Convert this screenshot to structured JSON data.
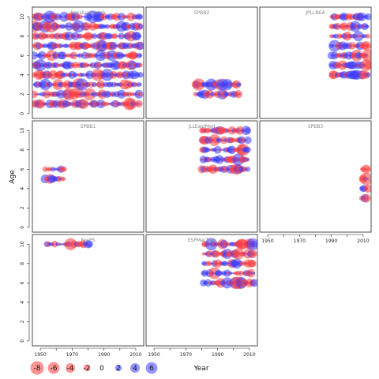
{
  "axis_labels": {
    "y": "Age",
    "x": "Year"
  },
  "colors": {
    "negative": "#ff3b3b",
    "positive": "#3b3bff",
    "frame": "#222222",
    "title": "#888888"
  },
  "chart_data": {
    "type": "scatter",
    "subtype": "bubble",
    "xlabel": "Year",
    "ylabel": "Age",
    "xlim": [
      1945,
      2015
    ],
    "ylim": [
      -0.5,
      11
    ],
    "x_ticks": [
      1950,
      1970,
      1990,
      2010
    ],
    "x_minor_ticks": [
      1960,
      1980,
      2000
    ],
    "y_ticks": [
      0,
      2,
      4,
      6,
      8,
      10
    ],
    "legend": {
      "placement": "bottom-left",
      "values": [
        -8,
        -6,
        -4,
        -2,
        0,
        2,
        4,
        6
      ],
      "labels": [
        "-8",
        "-6",
        "-4",
        "-2",
        "0",
        "2",
        "4",
        "6"
      ]
    },
    "panels": [
      {
        "title": "Residual catch",
        "years": [
          1946,
          2013
        ],
        "ages": [
          1,
          2,
          3,
          4,
          5,
          6,
          7,
          8,
          9,
          10
        ],
        "seed": 11
      },
      {
        "title": "SPBB2",
        "years": [
          1976,
          2004
        ],
        "ages": [
          2,
          3
        ],
        "seed": 23
      },
      {
        "title": "JPLLNEA",
        "years": [
          1990,
          2013
        ],
        "ages": [
          4,
          5,
          6,
          7,
          8,
          9,
          10
        ],
        "seed": 37
      },
      {
        "title": "SPBB1",
        "years": [
          1953,
          1965
        ],
        "ages": [
          5,
          6
        ],
        "seed": 41
      },
      {
        "title": "JLLEastMed",
        "years": [
          1980,
          2009
        ],
        "ages": [
          6,
          7,
          8,
          9,
          10
        ],
        "seed": 53
      },
      {
        "title": "SPBB3",
        "years": [
          2009,
          2013
        ],
        "ages": [
          3,
          4,
          5,
          6
        ],
        "seed": 67
      },
      {
        "title": "NorPS",
        "years": [
          1954,
          1981
        ],
        "ages": [
          10
        ],
        "seed": 71
      },
      {
        "title": "ESPMarTrap",
        "years": [
          1981,
          2013
        ],
        "ages": [
          6,
          7,
          8,
          9,
          10
        ],
        "seed": 83
      }
    ]
  }
}
